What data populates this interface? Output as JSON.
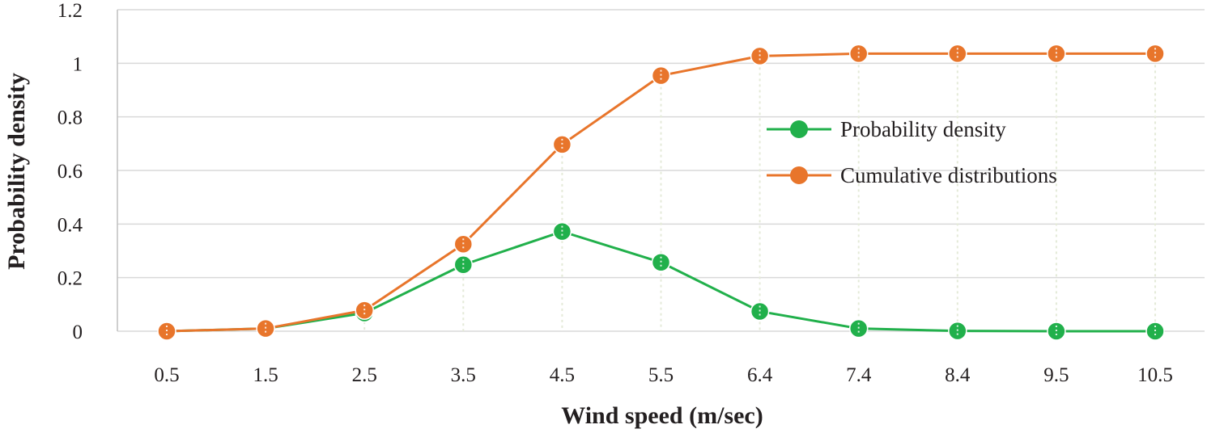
{
  "chart_data": {
    "type": "line",
    "title": "",
    "xlabel": "Wind speed (m/sec)",
    "ylabel": "Probability density",
    "categories": [
      "0.5",
      "1.5",
      "2.5",
      "3.5",
      "4.5",
      "5.5",
      "6.4",
      "7.4",
      "8.4",
      "9.5",
      "10.5"
    ],
    "ylim": [
      0,
      1.2
    ],
    "yticks": [
      "0",
      "0.2",
      "0.4",
      "0.6",
      "0.8",
      "1",
      "1.2"
    ],
    "grid": true,
    "legend_position": "right",
    "series": [
      {
        "name": "Probability density",
        "color": "#21b04b",
        "values": [
          0.0,
          0.01,
          0.068,
          0.248,
          0.372,
          0.257,
          0.074,
          0.01,
          0.001,
          0.0,
          0.0
        ]
      },
      {
        "name": "Cumulative distributions",
        "color": "#e8752b",
        "values": [
          0.0,
          0.01,
          0.078,
          0.325,
          0.697,
          0.954,
          1.027,
          1.036,
          1.036,
          1.036,
          1.036
        ]
      }
    ]
  }
}
